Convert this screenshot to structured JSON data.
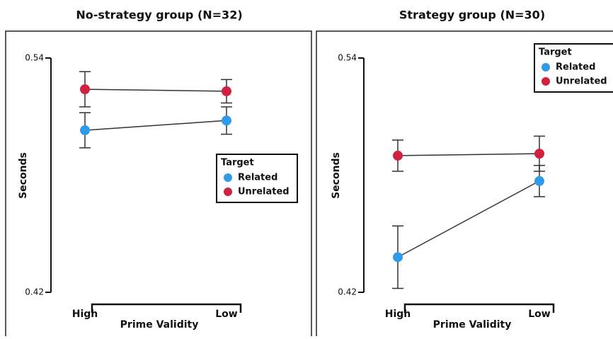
{
  "chart_data": [
    {
      "type": "line",
      "title": "No-strategy group (N=32)",
      "x_label": "Prime Validity",
      "y_label": "Seconds",
      "categories": [
        "High",
        "Low"
      ],
      "series": [
        {
          "name": "Related",
          "color": "#2f9be8",
          "values": [
            0.503,
            0.508
          ],
          "errors": [
            0.009,
            0.007
          ]
        },
        {
          "name": "Unrelated",
          "color": "#d0213f",
          "values": [
            0.524,
            0.523
          ],
          "errors": [
            0.009,
            0.006
          ]
        }
      ],
      "ylim": [
        0.42,
        0.54
      ],
      "yticks": [
        0.42,
        0.54
      ],
      "legend_title": "Target",
      "legend": "center right"
    },
    {
      "type": "line",
      "title": "Strategy group (N=30)",
      "x_label": "Prime Validity",
      "y_label": "Seconds",
      "categories": [
        "High",
        "Low"
      ],
      "series": [
        {
          "name": "Related",
          "color": "#2f9be8",
          "values": [
            0.438,
            0.477
          ],
          "errors": [
            0.016,
            0.008
          ]
        },
        {
          "name": "Unrelated",
          "color": "#d0213f",
          "values": [
            0.49,
            0.491
          ],
          "errors": [
            0.008,
            0.009
          ]
        }
      ],
      "ylim": [
        0.42,
        0.54
      ],
      "yticks": [
        0.42,
        0.54
      ],
      "legend_title": "Target",
      "legend": "upper right"
    }
  ]
}
